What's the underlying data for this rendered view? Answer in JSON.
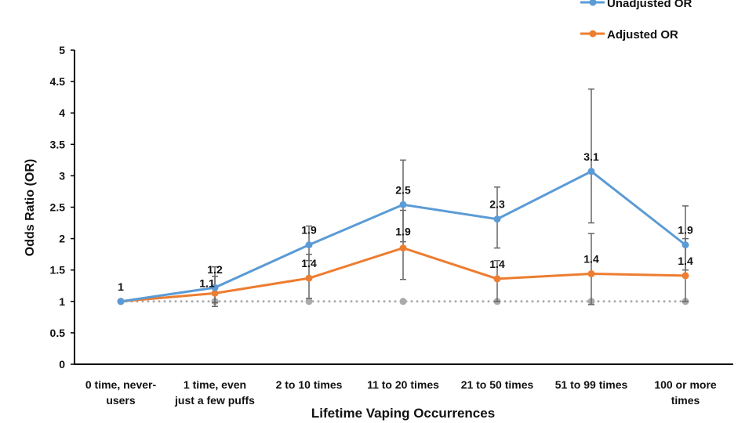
{
  "chart_data": {
    "type": "line",
    "title": "",
    "xlabel": "Lifetime Vaping Occurrences",
    "ylabel": "Odds Ratio (OR)",
    "ylim": [
      0,
      5
    ],
    "yticks": [
      0,
      0.5,
      1,
      1.5,
      2,
      2.5,
      3,
      3.5,
      4,
      4.5,
      5
    ],
    "ytick_labels": [
      "0",
      "0.5",
      "1",
      "1.5",
      "2",
      "2.5",
      "3",
      "3.5",
      "4",
      "4.5",
      "5"
    ],
    "categories": [
      [
        "0 time, never-",
        "users"
      ],
      [
        "1 time, even",
        "just a few puffs"
      ],
      [
        "2 to 10 times"
      ],
      [
        "11 to 20 times"
      ],
      [
        "21 to 50 times"
      ],
      [
        "51 to 99 times"
      ],
      [
        "100 or more",
        "times"
      ]
    ],
    "legend_position": "top-right",
    "grid": false,
    "reference_line": {
      "value": 1,
      "color": "#aaaaaa",
      "style": "dotted"
    },
    "series": [
      {
        "name": "Unadjusted OR",
        "color": "#5b9bd5",
        "values": [
          1,
          1.22,
          1.9,
          2.54,
          2.31,
          3.07,
          1.9
        ],
        "ci_lower": [
          1,
          0.98,
          1.65,
          1.95,
          1.85,
          2.25,
          1.5
        ],
        "ci_upper": [
          1,
          1.55,
          2.2,
          3.25,
          2.82,
          4.38,
          2.52
        ],
        "labels": [
          "1",
          "1.2",
          "1.9",
          "2.5",
          "2.3",
          "3.1",
          "1.9"
        ]
      },
      {
        "name": "Adjusted OR",
        "color": "#ed7d31",
        "values": [
          1,
          1.13,
          1.37,
          1.85,
          1.36,
          1.44,
          1.41
        ],
        "ci_lower": [
          1,
          0.92,
          1.05,
          1.35,
          1.0,
          0.95,
          1.0
        ],
        "ci_upper": [
          1,
          1.4,
          1.75,
          2.45,
          1.65,
          2.08,
          2.0
        ],
        "labels": [
          "",
          "1.1",
          "1.4",
          "1.9",
          "1.4",
          "1.4",
          "1.4"
        ]
      }
    ]
  }
}
